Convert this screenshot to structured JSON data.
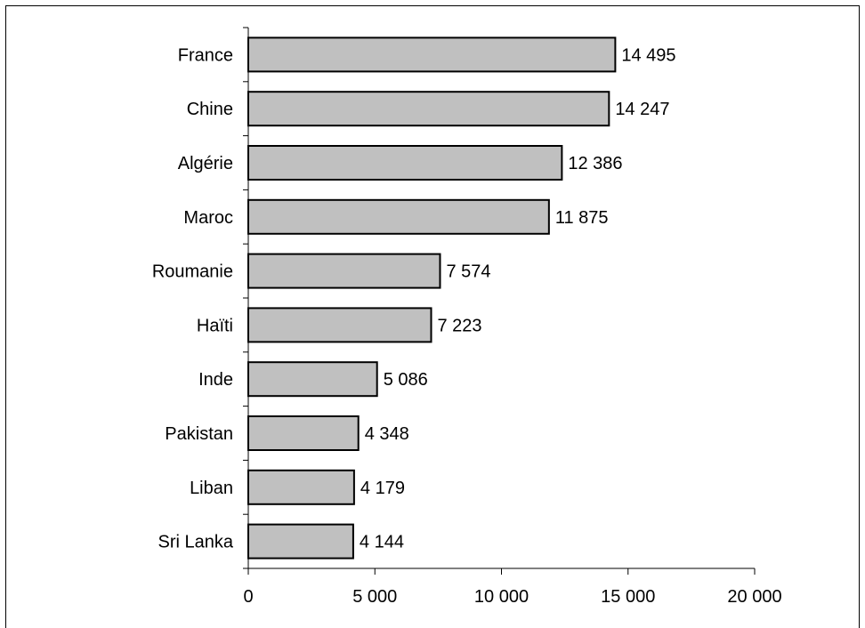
{
  "chart_data": {
    "type": "bar",
    "orientation": "horizontal",
    "categories": [
      "France",
      "Chine",
      "Algérie",
      "Maroc",
      "Roumanie",
      "Haïti",
      "Inde",
      "Pakistan",
      "Liban",
      "Sri Lanka"
    ],
    "values": [
      14495,
      14247,
      12386,
      11875,
      7574,
      7223,
      5086,
      4348,
      4179,
      4144
    ],
    "value_labels": [
      "14 495",
      "14 247",
      "12 386",
      "11 875",
      "7 574",
      "7 223",
      "5 086",
      "4 348",
      "4 179",
      "4 144"
    ],
    "xlim": [
      0,
      20000
    ],
    "xticks": [
      0,
      5000,
      10000,
      15000,
      20000
    ],
    "xtick_labels": [
      "0",
      "5 000",
      "10 000",
      "15 000",
      "20 000"
    ],
    "title": "",
    "xlabel": "",
    "ylabel": "",
    "grid": false,
    "legend": "none",
    "bar_color": "#c0c0c0",
    "bar_edge_color": "#000000"
  }
}
